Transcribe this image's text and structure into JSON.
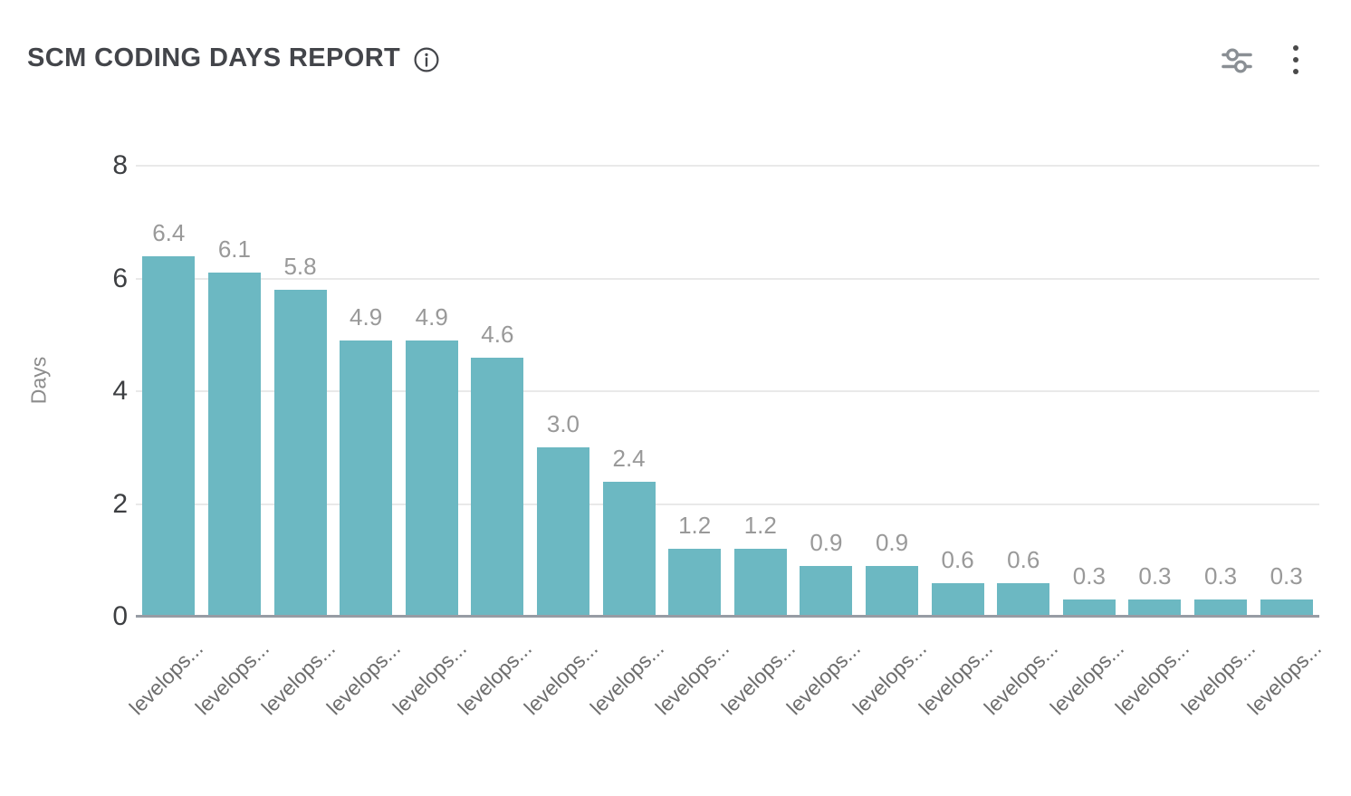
{
  "header": {
    "title": "SCM CODING DAYS REPORT",
    "icons": {
      "info": "info-icon",
      "filters": "filters-icon",
      "menu": "kebab-menu-icon"
    }
  },
  "chart_data": {
    "type": "bar",
    "title": "SCM CODING DAYS REPORT",
    "categories": [
      "levelops...",
      "levelops...",
      "levelops...",
      "levelops...",
      "levelops...",
      "levelops...",
      "levelops...",
      "levelops...",
      "levelops...",
      "levelops...",
      "levelops...",
      "levelops...",
      "levelops...",
      "levelops...",
      "levelops...",
      "levelops...",
      "levelops...",
      "levelops..."
    ],
    "values": [
      6.4,
      6.1,
      5.8,
      4.9,
      4.9,
      4.6,
      3.0,
      2.4,
      1.2,
      1.2,
      0.9,
      0.9,
      0.6,
      0.6,
      0.3,
      0.3,
      0.3,
      0.3
    ],
    "value_labels": [
      "6.4",
      "6.1",
      "5.8",
      "4.9",
      "4.9",
      "4.6",
      "3.0",
      "2.4",
      "1.2",
      "1.2",
      "0.9",
      "0.9",
      "0.6",
      "0.6",
      "0.3",
      "0.3",
      "0.3",
      "0.3"
    ],
    "xlabel": "",
    "ylabel": "Days",
    "yticks": [
      0,
      2,
      4,
      6,
      8
    ],
    "ylim": [
      0,
      8
    ],
    "grid": true,
    "legend": false,
    "bar_color": "#6cb8c2",
    "value_label_color": "#999999",
    "axis_label_color": "#6d6d6d"
  }
}
